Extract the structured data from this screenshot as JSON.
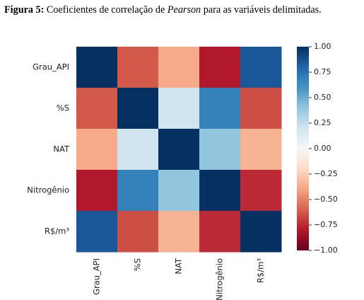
{
  "caption": {
    "label": "Figura 5:",
    "pre": " Coeficientes de correlação de ",
    "italic": "Pearson",
    "post": " para as variáveis delimitadas."
  },
  "chart_data": {
    "type": "heatmap",
    "title": "",
    "xlabel": "",
    "ylabel": "",
    "rows": [
      "Grau_API",
      "%S",
      "NAT",
      "Nitrogênio",
      "R$/m³"
    ],
    "columns": [
      "Grau_API",
      "%S",
      "NAT",
      "Nitrogênio",
      "R$/m³"
    ],
    "values": [
      [
        1.0,
        -0.62,
        -0.38,
        -0.8,
        0.85
      ],
      [
        -0.62,
        1.0,
        0.2,
        0.68,
        -0.65
      ],
      [
        -0.38,
        0.2,
        1.0,
        0.4,
        -0.35
      ],
      [
        -0.8,
        0.68,
        0.4,
        1.0,
        -0.75
      ],
      [
        0.85,
        -0.65,
        -0.35,
        -0.75,
        1.0
      ]
    ],
    "colorbar": {
      "colormap": "RdBu",
      "range": [
        -1.0,
        1.0
      ],
      "ticks": [
        1.0,
        0.75,
        0.5,
        0.25,
        0.0,
        -0.25,
        -0.5,
        -0.75,
        -1.0
      ],
      "tick_labels": [
        "1.00",
        "0.75",
        "0.50",
        "0.25",
        "0.00",
        "−0.25",
        "−0.50",
        "−0.75",
        "−1.00"
      ]
    },
    "grid": false,
    "x_tick_rotation": "vertical"
  }
}
